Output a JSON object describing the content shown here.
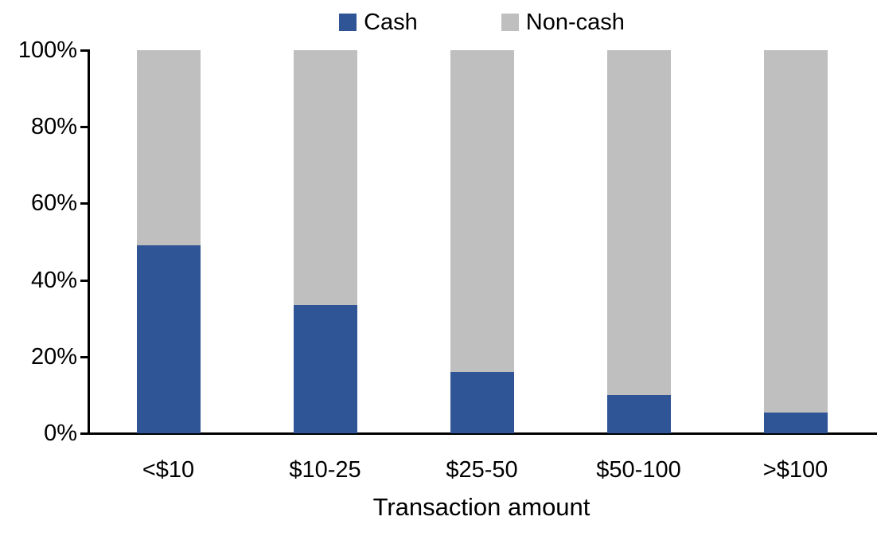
{
  "chart_data": {
    "type": "bar",
    "stacked": true,
    "percent_stacked": true,
    "title": "",
    "xlabel": "Transaction amount",
    "ylabel": "",
    "categories": [
      "<$10",
      "$10-25",
      "$25-50",
      "$50-100",
      ">$100"
    ],
    "series": [
      {
        "name": "Cash",
        "color": "#2F5597",
        "values": [
          49,
          33.5,
          16,
          10,
          5.5
        ]
      },
      {
        "name": "Non-cash",
        "color": "#BFBFBF",
        "values": [
          51,
          66.5,
          84,
          90,
          94.5
        ]
      }
    ],
    "ylim": [
      0,
      100
    ],
    "yticks": [
      "0%",
      "20%",
      "40%",
      "60%",
      "80%",
      "100%"
    ],
    "ytick_values": [
      0,
      20,
      40,
      60,
      80,
      100
    ],
    "grid": false,
    "legend_position": "top",
    "axis_color": "#000000",
    "background_color": "#FFFFFF"
  }
}
